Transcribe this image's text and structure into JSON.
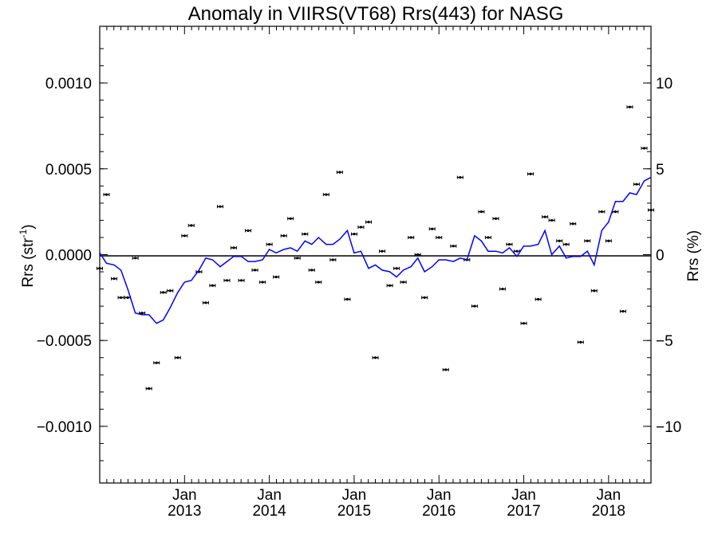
{
  "chart_data": {
    "type": "line",
    "title": "Anomaly in VIIRS(VT68) Rrs(443) for NASG",
    "ylabel_left": "Rrs (str",
    "ylabel_left_sup": "-1",
    "ylabel_left_end": ")",
    "ylabel_right": "Rrs (%)",
    "ylim_left": [
      -0.00133,
      0.00133
    ],
    "ylim_right": [
      -13.3,
      13.3
    ],
    "xlim": [
      2012.0,
      2018.5
    ],
    "grid": false,
    "zero_line": true,
    "line_color": "#0000ff",
    "left_ticks": [
      {
        "value": 0.001,
        "label": "0.0010"
      },
      {
        "value": 0.0005,
        "label": "0.0005"
      },
      {
        "value": 0.0,
        "label": "0.0000"
      },
      {
        "value": -0.0005,
        "label": "−0.0005"
      },
      {
        "value": -0.001,
        "label": "−0.0010"
      }
    ],
    "right_ticks": [
      {
        "value": 10,
        "label": "10"
      },
      {
        "value": 5,
        "label": "5"
      },
      {
        "value": 0,
        "label": "0"
      },
      {
        "value": -5,
        "label": "−5"
      },
      {
        "value": -10,
        "label": "−10"
      }
    ],
    "x_ticks": [
      {
        "value": 2013.0,
        "label": "Jan",
        "year": "2013"
      },
      {
        "value": 2014.0,
        "label": "Jan",
        "year": "2014"
      },
      {
        "value": 2015.0,
        "label": "Jan",
        "year": "2015"
      },
      {
        "value": 2016.0,
        "label": "Jan",
        "year": "2016"
      },
      {
        "value": 2017.0,
        "label": "Jan",
        "year": "2017"
      },
      {
        "value": 2018.0,
        "label": "Jan",
        "year": "2018"
      }
    ],
    "series": [
      {
        "kind": "points_with_error",
        "x": [
          2012.0,
          2012.08,
          2012.17,
          2012.25,
          2012.33,
          2012.42,
          2012.5,
          2012.58,
          2012.67,
          2012.75,
          2012.83,
          2012.92,
          2013.0,
          2013.08,
          2013.17,
          2013.25,
          2013.33,
          2013.42,
          2013.5,
          2013.58,
          2013.67,
          2013.75,
          2013.83,
          2013.92,
          2014.0,
          2014.08,
          2014.17,
          2014.25,
          2014.33,
          2014.42,
          2014.5,
          2014.58,
          2014.67,
          2014.75,
          2014.83,
          2014.92,
          2015.0,
          2015.08,
          2015.17,
          2015.25,
          2015.33,
          2015.42,
          2015.5,
          2015.58,
          2015.67,
          2015.75,
          2015.83,
          2015.92,
          2016.0,
          2016.08,
          2016.17,
          2016.25,
          2016.33,
          2016.42,
          2016.5,
          2016.58,
          2016.67,
          2016.75,
          2016.83,
          2016.92,
          2017.0,
          2017.08,
          2017.17,
          2017.25,
          2017.33,
          2017.42,
          2017.5,
          2017.58,
          2017.67,
          2017.75,
          2017.83,
          2017.92,
          2018.0,
          2018.08,
          2018.17,
          2018.25,
          2018.33,
          2018.42,
          2018.5
        ],
        "y": [
          -8e-05,
          0.00035,
          -0.00014,
          -0.00025,
          -0.00025,
          -2e-05,
          -0.00034,
          -0.00078,
          -0.00063,
          -0.00022,
          -0.00021,
          -0.0006,
          0.00011,
          0.00017,
          -0.0001,
          -0.00028,
          -0.00018,
          0.00028,
          -0.00015,
          4e-05,
          -0.00015,
          0.00014,
          -9e-05,
          -0.00016,
          6e-05,
          -0.00013,
          0.00011,
          0.00021,
          -2e-05,
          0.00012,
          -9e-05,
          -0.00016,
          0.00035,
          -3e-05,
          0.00048,
          -0.00026,
          0.00012,
          0.00016,
          0.00019,
          -0.0006,
          2e-05,
          -0.00018,
          -8e-05,
          -0.00016,
          0.0001,
          0.0,
          -0.00025,
          0.00015,
          0.0001,
          -0.00067,
          5e-05,
          0.00045,
          -3e-05,
          -0.0003,
          0.00025,
          0.0001,
          0.00021,
          -0.0002,
          6e-05,
          2e-05,
          -0.0004,
          0.00047,
          -0.00026,
          0.00022,
          0.0002,
          8e-05,
          6e-05,
          0.00018,
          -0.00051,
          8e-05,
          -0.00021,
          0.00025,
          8e-05,
          0.00025,
          -0.00033,
          0.00086,
          0.00041,
          0.00062,
          0.00026
        ]
      },
      {
        "kind": "line",
        "x": [
          2012.0,
          2012.08,
          2012.17,
          2012.25,
          2012.33,
          2012.42,
          2012.5,
          2012.58,
          2012.67,
          2012.75,
          2012.83,
          2012.92,
          2013.0,
          2013.08,
          2013.17,
          2013.25,
          2013.33,
          2013.42,
          2013.5,
          2013.58,
          2013.67,
          2013.75,
          2013.83,
          2013.92,
          2014.0,
          2014.08,
          2014.17,
          2014.25,
          2014.33,
          2014.42,
          2014.5,
          2014.58,
          2014.67,
          2014.75,
          2014.83,
          2014.92,
          2015.0,
          2015.08,
          2015.17,
          2015.25,
          2015.33,
          2015.42,
          2015.5,
          2015.58,
          2015.67,
          2015.75,
          2015.83,
          2015.92,
          2016.0,
          2016.08,
          2016.17,
          2016.25,
          2016.33,
          2016.42,
          2016.5,
          2016.58,
          2016.67,
          2016.75,
          2016.83,
          2016.92,
          2017.0,
          2017.08,
          2017.17,
          2017.25,
          2017.33,
          2017.42,
          2017.5,
          2017.58,
          2017.67,
          2017.75,
          2017.83,
          2017.92,
          2018.0,
          2018.08,
          2018.17,
          2018.25,
          2018.33,
          2018.42,
          2018.5
        ],
        "y": [
          0.1,
          -0.5,
          -0.6,
          -0.9,
          -2.0,
          -3.4,
          -3.5,
          -3.5,
          -4.0,
          -3.8,
          -3.1,
          -2.2,
          -1.6,
          -1.5,
          -0.9,
          -0.2,
          -0.3,
          -0.7,
          -0.4,
          -0.1,
          -0.1,
          -0.4,
          -0.4,
          -0.3,
          0.3,
          0.1,
          0.3,
          0.4,
          0.2,
          0.8,
          0.6,
          1.0,
          0.6,
          0.6,
          0.9,
          1.4,
          0.1,
          0.2,
          -0.8,
          -0.6,
          -0.9,
          -1.0,
          -1.3,
          -0.9,
          -0.7,
          -0.2,
          -1.0,
          -0.7,
          -0.3,
          -0.3,
          -0.4,
          -0.2,
          -0.3,
          1.1,
          0.8,
          0.2,
          0.2,
          0.1,
          0.4,
          -0.1,
          0.5,
          0.5,
          0.6,
          1.4,
          0.0,
          0.5,
          -0.2,
          -0.1,
          -0.1,
          0.2,
          -0.6,
          1.4,
          1.9,
          3.1,
          3.1,
          3.6,
          3.5,
          4.3,
          4.5
        ]
      }
    ]
  }
}
